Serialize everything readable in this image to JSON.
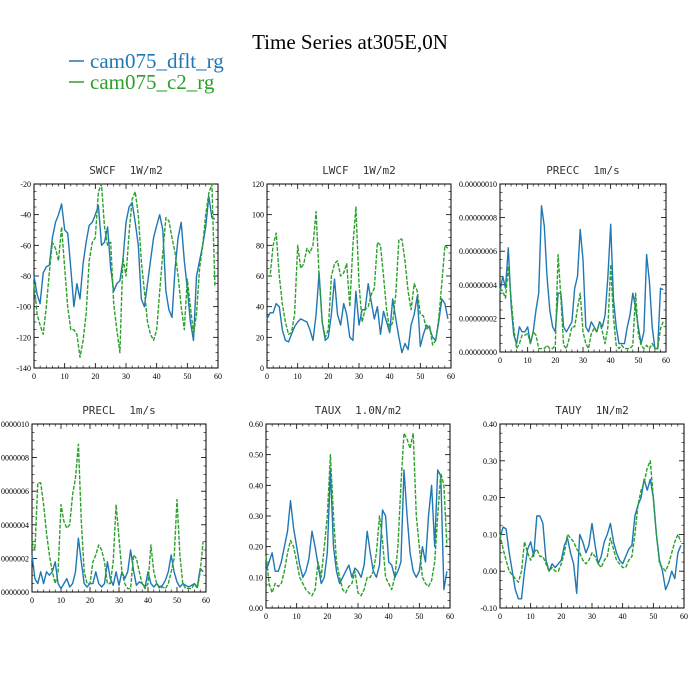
{
  "title": "Time Series at305E,0N",
  "legend": [
    {
      "label": "cam075_dflt_rg",
      "color": "#1f77b4",
      "dash": false
    },
    {
      "label": "cam075_c2_rg",
      "color": "#2ca02c",
      "dash": true
    }
  ],
  "chart_data": [
    {
      "type": "line",
      "title": "SWCF 1W/m2",
      "title_name": "SWCF",
      "title_unit": "1W/m2",
      "xlim": [
        0,
        60
      ],
      "ylim": [
        -140,
        -20
      ],
      "xticks": [
        0,
        10,
        20,
        30,
        40,
        50,
        60
      ],
      "yticks": [
        -140,
        -120,
        -100,
        -80,
        -60,
        -40,
        -20
      ],
      "ytick_labels": [
        "-140",
        "-120",
        "-100",
        "-80",
        "-60",
        "-40",
        "-20"
      ],
      "series": [
        {
          "name": "cam075_dflt_rg",
          "values": [
            -80,
            -92,
            -98,
            -78,
            -74,
            -73,
            -55,
            -45,
            -40,
            -33,
            -50,
            -52,
            -75,
            -100,
            -85,
            -95,
            -72,
            -58,
            -47,
            -45,
            -40,
            -34,
            -60,
            -58,
            -48,
            -75,
            -90,
            -85,
            -83,
            -70,
            -45,
            -35,
            -32,
            -45,
            -60,
            -95,
            -100,
            -85,
            -70,
            -55,
            -47,
            -40,
            -50,
            -90,
            -102,
            -107,
            -75,
            -55,
            -45,
            -70,
            -88,
            -110,
            -122,
            -80,
            -70,
            -60,
            -48,
            -28,
            -42,
            -43
          ]
        },
        {
          "name": "cam075_c2_rg",
          "values": [
            -85,
            -105,
            -112,
            -118,
            -100,
            -78,
            -58,
            -62,
            -70,
            -48,
            -75,
            -100,
            -115,
            -115,
            -118,
            -133,
            -122,
            -105,
            -70,
            -58,
            -55,
            -25,
            -20,
            -48,
            -60,
            -58,
            -98,
            -115,
            -130,
            -68,
            -80,
            -52,
            -30,
            -25,
            -40,
            -70,
            -90,
            -110,
            -118,
            -122,
            -115,
            -90,
            -65,
            -42,
            -44,
            -55,
            -65,
            -80,
            -100,
            -115,
            -82,
            -100,
            -118,
            -105,
            -75,
            -60,
            -40,
            -26,
            -20,
            -87
          ]
        }
      ]
    },
    {
      "type": "line",
      "title": "LWCF 1W/m2",
      "title_name": "LWCF",
      "title_unit": "1W/m2",
      "xlim": [
        0,
        60
      ],
      "ylim": [
        0,
        120
      ],
      "xticks": [
        0,
        10,
        20,
        30,
        40,
        50,
        60
      ],
      "yticks": [
        0,
        20,
        40,
        60,
        80,
        100,
        120
      ],
      "ytick_labels": [
        "0",
        "20",
        "40",
        "60",
        "80",
        "100",
        "120"
      ],
      "series": [
        {
          "name": "cam075_dflt_rg",
          "values": [
            32,
            36,
            36,
            42,
            40,
            25,
            18,
            17,
            22,
            27,
            30,
            32,
            31,
            30,
            25,
            18,
            35,
            62,
            30,
            18,
            20,
            35,
            58,
            35,
            28,
            42,
            35,
            20,
            18,
            50,
            28,
            38,
            38,
            55,
            43,
            32,
            40,
            22,
            37,
            30,
            23,
            45,
            32,
            20,
            10,
            16,
            12,
            28,
            35,
            47,
            14,
            22,
            28,
            26,
            20,
            18,
            30,
            45,
            42,
            32
          ]
        },
        {
          "name": "cam075_c2_rg",
          "values": [
            60,
            60,
            80,
            88,
            60,
            42,
            30,
            22,
            23,
            35,
            80,
            65,
            68,
            78,
            75,
            80,
            102,
            60,
            30,
            20,
            25,
            60,
            68,
            70,
            60,
            62,
            68,
            40,
            80,
            105,
            55,
            30,
            38,
            40,
            48,
            52,
            82,
            80,
            60,
            38,
            25,
            30,
            48,
            84,
            84,
            70,
            50,
            38,
            55,
            50,
            35,
            34,
            25,
            28,
            15,
            18,
            32,
            55,
            80,
            78
          ]
        }
      ]
    },
    {
      "type": "line",
      "title": "PRECC 1m/s",
      "title_name": "PRECC",
      "title_unit": "1m/s",
      "xlim": [
        0,
        60
      ],
      "ylim": [
        0,
        1e-07
      ],
      "xticks": [
        0,
        10,
        20,
        30,
        40,
        50,
        60
      ],
      "yticks": [
        0,
        2e-08,
        4e-08,
        6e-08,
        8e-08,
        1e-07
      ],
      "ytick_labels": [
        "0.00000000",
        "0.00000002",
        "0.00000004",
        "0.00000006",
        "0.00000008",
        "0.00000010"
      ],
      "series": [
        {
          "name": "cam075_dflt_rg",
          "values": [
            3.6e-08,
            4.5e-08,
            3.8e-08,
            6.2e-08,
            2.8e-08,
            1e-08,
            5e-09,
            1.5e-08,
            1.2e-08,
            1.2e-08,
            1.5e-08,
            5e-09,
            1.2e-08,
            2.5e-08,
            3.5e-08,
            8.7e-08,
            7.5e-08,
            4.5e-08,
            2.5e-08,
            1.5e-08,
            1.2e-08,
            3.5e-08,
            3.5e-08,
            1.5e-08,
            1.2e-08,
            1.5e-08,
            1.8e-08,
            3.8e-08,
            4.5e-08,
            7.3e-08,
            5.5e-08,
            1.5e-08,
            1.2e-08,
            1.8e-08,
            1.5e-08,
            1.2e-08,
            1.8e-08,
            1.5e-08,
            2.2e-08,
            4.5e-08,
            7.6e-08,
            3.2e-08,
            1.5e-08,
            5e-09,
            5e-09,
            5e-09,
            1.5e-08,
            2.2e-08,
            3.5e-08,
            2.6e-08,
            1.5e-08,
            5e-09,
            1.2e-08,
            5.8e-08,
            4.2e-08,
            1.5e-08,
            2e-09,
            2e-09,
            3.8e-08,
            3.7e-08
          ]
        },
        {
          "name": "cam075_c2_rg",
          "values": [
            3.8e-08,
            3.6e-08,
            3.2e-08,
            5.1e-08,
            3.2e-08,
            1.4e-08,
            2e-09,
            5e-09,
            1e-08,
            1e-08,
            1.1e-08,
            5e-09,
            1.2e-08,
            1e-08,
            2e-09,
            2e-09,
            2e-09,
            4e-09,
            2e-09,
            2e-09,
            4e-09,
            5.8e-08,
            3.2e-08,
            4e-09,
            2e-09,
            8e-09,
            1.5e-08,
            1.5e-08,
            2.6e-08,
            3.5e-08,
            1.2e-08,
            5e-09,
            2e-09,
            1.1e-08,
            1.4e-08,
            1.2e-08,
            1.8e-08,
            1.2e-08,
            5e-09,
            1.5e-08,
            5.2e-08,
            2.1e-08,
            4e-09,
            2e-09,
            4e-09,
            2e-09,
            2e-09,
            2e-09,
            4e-09,
            3.5e-08,
            1.1e-08,
            4e-09,
            2e-09,
            4e-09,
            2e-09,
            5e-09,
            2e-09,
            2e-09,
            1.4e-08,
            1.8e-08
          ]
        }
      ]
    },
    {
      "type": "line",
      "title": "PRECL 1m/s",
      "title_name": "PRECL",
      "title_unit": "1m/s",
      "xlim": [
        0,
        60
      ],
      "ylim": [
        0,
        1e-07
      ],
      "xticks": [
        0,
        10,
        20,
        30,
        40,
        50,
        60
      ],
      "yticks": [
        0,
        2e-08,
        4e-08,
        6e-08,
        8e-08,
        1e-07
      ],
      "ytick_labels": [
        "0000000",
        "0000002",
        "0000004",
        "0000006",
        "0000008",
        "0000010"
      ],
      "series": [
        {
          "name": "cam075_dflt_rg",
          "values": [
            2.2e-08,
            8e-09,
            5e-09,
            1.2e-08,
            5e-09,
            1.2e-08,
            1e-08,
            1.2e-08,
            1.8e-08,
            5e-09,
            2e-09,
            5e-09,
            8e-09,
            3e-09,
            5e-09,
            1.2e-08,
            3.2e-08,
            1.8e-08,
            5e-09,
            3e-09,
            5e-09,
            5e-09,
            1.2e-08,
            5e-09,
            3e-09,
            5e-09,
            1.8e-08,
            8e-09,
            4e-09,
            1.2e-08,
            4e-09,
            1.2e-08,
            8e-09,
            1.2e-08,
            2.5e-08,
            1.3e-08,
            4e-09,
            6e-09,
            5e-09,
            3e-09,
            1.2e-08,
            5e-09,
            3e-09,
            5e-09,
            3e-09,
            4e-09,
            7e-09,
            1.2e-08,
            2.2e-08,
            1.2e-08,
            6e-09,
            3e-09,
            5e-09,
            4e-09,
            3e-09,
            4e-09,
            5e-09,
            3e-09,
            1.4e-08,
            1.2e-08
          ]
        },
        {
          "name": "cam075_c2_rg",
          "values": [
            3e-08,
            2.5e-08,
            6.5e-08,
            6.5e-08,
            5.2e-08,
            3.5e-08,
            2.2e-08,
            1.2e-08,
            5e-09,
            1.2e-08,
            5.2e-08,
            4.2e-08,
            3.8e-08,
            4e-08,
            5.8e-08,
            6.8e-08,
            8.8e-08,
            4.2e-08,
            1.2e-08,
            5e-09,
            5e-09,
            1.8e-08,
            2.2e-08,
            2.8e-08,
            2.5e-08,
            1.8e-08,
            5e-09,
            5e-09,
            1.8e-08,
            5.2e-08,
            3.2e-08,
            1.2e-08,
            5e-09,
            2e-09,
            2e-09,
            2.2e-08,
            2e-08,
            1.2e-08,
            5e-09,
            2e-09,
            5e-09,
            2.8e-08,
            1.2e-08,
            5e-09,
            2e-09,
            3e-09,
            2e-09,
            5e-09,
            1.2e-08,
            2e-08,
            5.5e-08,
            2.2e-08,
            5e-09,
            2e-09,
            2e-09,
            2e-09,
            5e-09,
            2e-09,
            1.2e-08,
            3e-08
          ]
        }
      ]
    },
    {
      "type": "line",
      "title": "TAUX 1.0N/m2",
      "title_name": "TAUX",
      "title_unit": "1.0N/m2",
      "xlim": [
        0,
        60
      ],
      "ylim": [
        0,
        0.6
      ],
      "xticks": [
        0,
        10,
        20,
        30,
        40,
        50,
        60
      ],
      "yticks": [
        0,
        0.1,
        0.2,
        0.3,
        0.4,
        0.5,
        0.6
      ],
      "ytick_labels": [
        "0.00",
        "0.10",
        "0.20",
        "0.30",
        "0.40",
        "0.50",
        "0.60"
      ],
      "series": [
        {
          "name": "cam075_dflt_rg",
          "values": [
            0.12,
            0.15,
            0.18,
            0.12,
            0.12,
            0.15,
            0.2,
            0.25,
            0.35,
            0.26,
            0.2,
            0.14,
            0.1,
            0.12,
            0.16,
            0.25,
            0.2,
            0.14,
            0.08,
            0.1,
            0.18,
            0.45,
            0.2,
            0.12,
            0.08,
            0.1,
            0.12,
            0.14,
            0.1,
            0.13,
            0.12,
            0.1,
            0.14,
            0.25,
            0.18,
            0.12,
            0.1,
            0.14,
            0.32,
            0.3,
            0.15,
            0.14,
            0.1,
            0.12,
            0.15,
            0.45,
            0.3,
            0.18,
            0.12,
            0.1,
            0.12,
            0.2,
            0.15,
            0.3,
            0.4,
            0.2,
            0.45,
            0.43,
            0.06,
            0.12
          ]
        },
        {
          "name": "cam075_c2_rg",
          "values": [
            0.17,
            0.08,
            0.05,
            0.08,
            0.07,
            0.08,
            0.12,
            0.18,
            0.22,
            0.2,
            0.15,
            0.1,
            0.08,
            0.06,
            0.05,
            0.04,
            0.06,
            0.15,
            0.1,
            0.2,
            0.3,
            0.5,
            0.3,
            0.15,
            0.1,
            0.06,
            0.05,
            0.07,
            0.08,
            0.12,
            0.05,
            0.04,
            0.06,
            0.1,
            0.1,
            0.12,
            0.18,
            0.3,
            0.22,
            0.1,
            0.08,
            0.06,
            0.1,
            0.2,
            0.4,
            0.57,
            0.55,
            0.52,
            0.57,
            0.3,
            0.2,
            0.1,
            0.08,
            0.07,
            0.09,
            0.15,
            0.3,
            0.44,
            0.4,
            0.2
          ]
        }
      ]
    },
    {
      "type": "line",
      "title": "TAUY 1N/m2",
      "title_name": "TAUY",
      "title_unit": "1N/m2",
      "xlim": [
        0,
        60
      ],
      "ylim": [
        -0.1,
        0.4
      ],
      "xticks": [
        0,
        10,
        20,
        30,
        40,
        50,
        60
      ],
      "yticks": [
        -0.1,
        0,
        0.1,
        0.2,
        0.3,
        0.4
      ],
      "ytick_labels": [
        "-0.10",
        "0.00",
        "0.10",
        "0.20",
        "0.30",
        "0.40"
      ],
      "series": [
        {
          "name": "cam075_dflt_rg",
          "values": [
            0.09,
            0.12,
            0.115,
            0.05,
            0.0,
            -0.05,
            -0.075,
            -0.075,
            0.0,
            0.06,
            0.08,
            0.04,
            0.15,
            0.15,
            0.13,
            0.03,
            0.0,
            0.02,
            0.01,
            0.02,
            0.03,
            0.07,
            0.09,
            0.05,
            0.02,
            -0.06,
            0.1,
            0.08,
            0.05,
            0.07,
            0.13,
            0.07,
            0.02,
            0.04,
            0.08,
            0.1,
            0.13,
            0.08,
            0.05,
            0.03,
            0.02,
            0.04,
            0.06,
            0.07,
            0.15,
            0.18,
            0.2,
            0.25,
            0.22,
            0.25,
            0.2,
            0.1,
            0.03,
            0.0,
            -0.05,
            -0.03,
            0.0,
            -0.02,
            0.05,
            0.07
          ]
        },
        {
          "name": "cam075_c2_rg",
          "values": [
            0.1,
            0.06,
            0.03,
            0.0,
            -0.01,
            -0.02,
            -0.03,
            0.0,
            0.08,
            0.05,
            0.03,
            0.05,
            0.06,
            0.04,
            0.04,
            0.02,
            0.0,
            0.01,
            0.0,
            0.0,
            0.02,
            0.05,
            0.1,
            0.09,
            0.08,
            0.06,
            0.05,
            0.03,
            0.02,
            0.03,
            0.05,
            0.04,
            0.02,
            0.01,
            0.03,
            0.04,
            0.09,
            0.06,
            0.03,
            0.02,
            0.01,
            0.01,
            0.03,
            0.04,
            0.1,
            0.18,
            0.22,
            0.24,
            0.28,
            0.3,
            0.2,
            0.1,
            0.02,
            0.01,
            0.0,
            0.02,
            0.05,
            0.08,
            0.1,
            0.08
          ]
        }
      ]
    }
  ]
}
